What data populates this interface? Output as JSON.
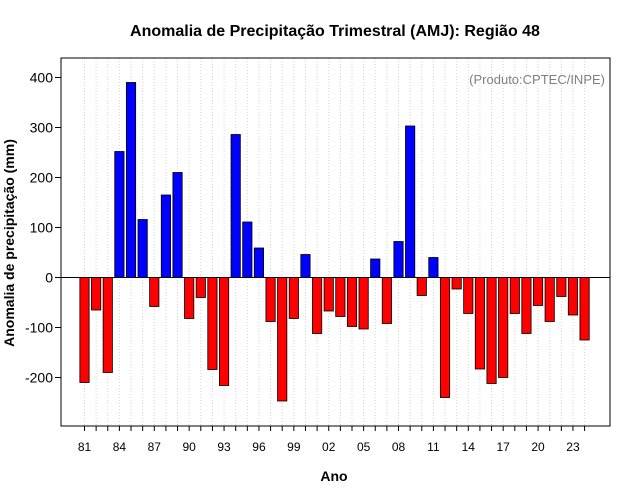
{
  "chart_data": {
    "type": "bar",
    "title": "Anomalia de Precipitação Trimestral (AMJ): Região 48",
    "xlabel": "Ano",
    "ylabel": "Anomalia de precipitação (mm)",
    "credit": "(Produto:CPTEC/INPE)",
    "ylim": [
      -300,
      430
    ],
    "yticks": [
      -200,
      -100,
      0,
      100,
      200,
      300,
      400
    ],
    "years": [
      1981,
      1982,
      1983,
      1984,
      1985,
      1986,
      1987,
      1988,
      1989,
      1990,
      1991,
      1992,
      1993,
      1994,
      1995,
      1996,
      1997,
      1998,
      1999,
      2000,
      2001,
      2002,
      2003,
      2004,
      2005,
      2006,
      2007,
      2008,
      2009,
      2010,
      2011,
      2012,
      2013,
      2014,
      2015,
      2016,
      2017,
      2018,
      2019,
      2020,
      2021,
      2022,
      2023,
      2024
    ],
    "values": [
      -210,
      -65,
      -190,
      252,
      390,
      116,
      -58,
      165,
      210,
      -82,
      -40,
      -184,
      -216,
      286,
      111,
      59,
      -88,
      -247,
      -82,
      46,
      -112,
      -67,
      -78,
      -98,
      -103,
      37,
      -92,
      72,
      303,
      -36,
      40,
      -240,
      -23,
      -72,
      -183,
      -212,
      -200,
      -72,
      -112,
      -56,
      -88,
      -38,
      -75,
      -125
    ],
    "xtick_labels": [
      "81",
      "84",
      "87",
      "90",
      "93",
      "96",
      "99",
      "02",
      "05",
      "08",
      "11",
      "14",
      "17",
      "20",
      "23"
    ],
    "xtick_years": [
      1981,
      1984,
      1987,
      1990,
      1993,
      1996,
      1999,
      2002,
      2005,
      2008,
      2011,
      2014,
      2017,
      2020,
      2023
    ],
    "colors": {
      "positive": "#0000ff",
      "negative": "#ff0000",
      "grid": "#d3d3d3",
      "axis": "#000000"
    }
  }
}
